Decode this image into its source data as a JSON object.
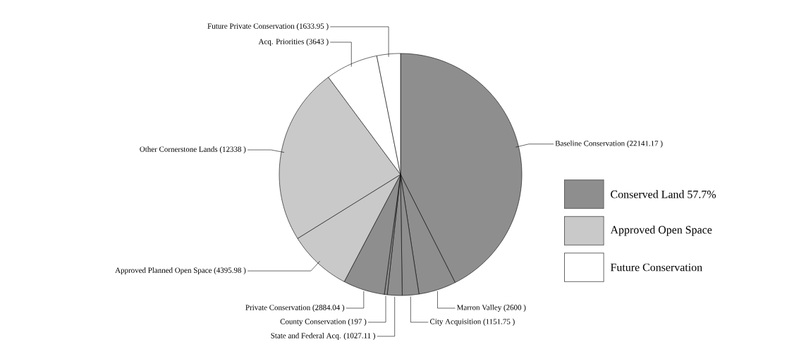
{
  "chart_data": {
    "type": "pie",
    "categories": [
      "Baseline Conservation",
      "Marron Valley",
      "City Acquisition",
      "State and Federal Acq.",
      "County Conservation",
      "Private Conservation",
      "Approved Planned Open Space",
      "Other Cornerstone Lands",
      "Acq. Priorities",
      "Future Private Conservation"
    ],
    "values": [
      22141.17,
      2600,
      1151.75,
      1027.11,
      197,
      2884.04,
      4395.98,
      12338,
      3643,
      1633.95
    ],
    "colors": [
      "#8e8e8e",
      "#8e8e8e",
      "#8e8e8e",
      "#8e8e8e",
      "#8e8e8e",
      "#8e8e8e",
      "#c9c9c9",
      "#c9c9c9",
      "#ffffff",
      "#ffffff"
    ],
    "value_labels": [
      "(22141.17 )",
      "(2600 )",
      "(1151.75 )",
      "(1027.11 )",
      "(197 )",
      "(2884.04 )",
      "(4395.98 )",
      "(12338 )",
      "(3643 )",
      "(1633.95 )"
    ],
    "annotations": [
      "Conserved Land 57.7%",
      "Approved Open Space",
      "Future Conservation"
    ]
  }
}
